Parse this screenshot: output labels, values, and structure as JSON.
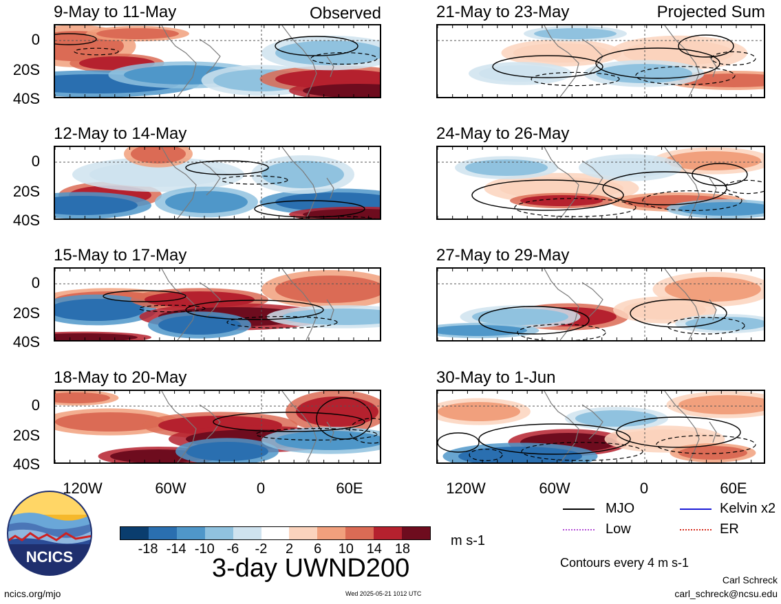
{
  "column_labels": {
    "observed": "Observed",
    "projected": "Projected Sum"
  },
  "panels": [
    {
      "title": "9-May to 11-May"
    },
    {
      "title": "12-May to 14-May"
    },
    {
      "title": "15-May to 17-May"
    },
    {
      "title": "18-May to 20-May"
    },
    {
      "title": "21-May to 23-May"
    },
    {
      "title": "24-May to 26-May"
    },
    {
      "title": "27-May to 29-May"
    },
    {
      "title": "30-May to 1-Jun"
    }
  ],
  "lat_labels": [
    "0",
    "20S",
    "40S"
  ],
  "lon_labels": [
    "120W",
    "60W",
    "0",
    "60E"
  ],
  "colorbar": {
    "colors": [
      "#0a3d6e",
      "#2a6fb0",
      "#4f97c9",
      "#90c2df",
      "#cfe3ef",
      "#ffffff",
      "#fbd3bd",
      "#f1a07d",
      "#db6b55",
      "#b5212e",
      "#6e0c1e"
    ],
    "tick_labels": [
      "-18",
      "-14",
      "-10",
      "-6",
      "-2",
      "2",
      "6",
      "10",
      "14",
      "18"
    ],
    "units": "m s-1"
  },
  "main_title": "3-day UWND200",
  "legend": {
    "items": [
      {
        "label": "MJO",
        "color": "#000000"
      },
      {
        "label": "Kelvin x2",
        "color": "#1a1ad6"
      },
      {
        "label": "Low",
        "color": "#b24ad6"
      },
      {
        "label": "ER",
        "color": "#d62a1a"
      }
    ],
    "contour_note": "Contours every 4 m s-1"
  },
  "logo": {
    "text": "NCICS"
  },
  "footer": {
    "url": "ncics.org/mjo",
    "timestamp": "Wed 2025-05-21 1012 UTC",
    "author": "Carl Schreck",
    "email": "carl_schreck@ncsu.edu"
  }
}
